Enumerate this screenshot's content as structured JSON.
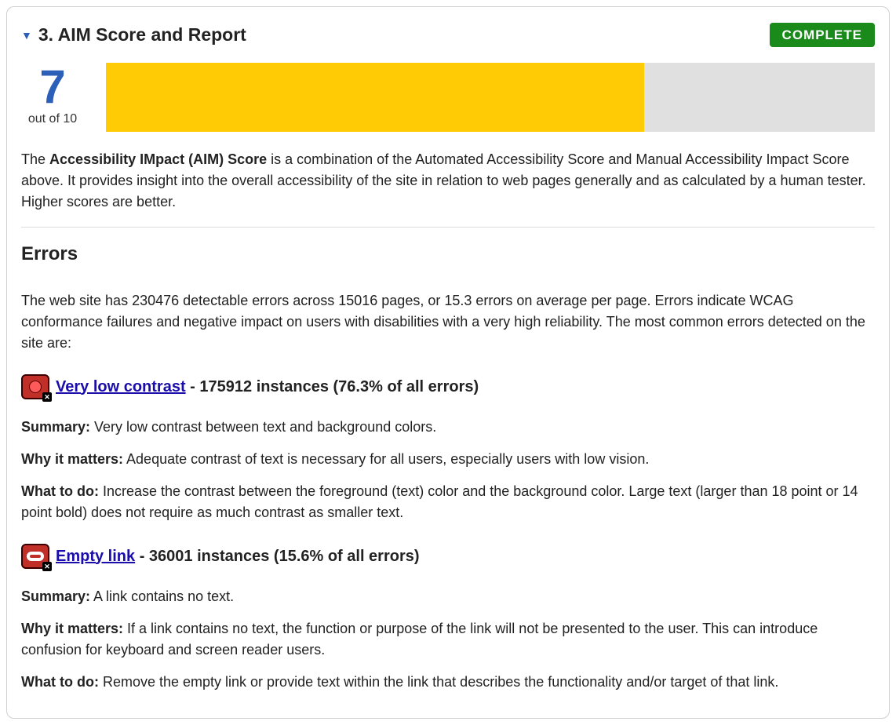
{
  "section": {
    "title": "3. AIM Score and Report",
    "badge": "COMPLETE",
    "badge_bg": "#1a8a1a",
    "badge_color": "#ffffff"
  },
  "score": {
    "value": "7",
    "max_label": "out of 10",
    "fill_percent": 70,
    "fill_color": "#ffcb05",
    "bg_color": "#e0e0e0",
    "value_color": "#2c5fb8"
  },
  "intro": {
    "prefix": "The ",
    "bold": "Accessibility IMpact (AIM) Score",
    "rest": " is a combination of the Automated Accessibility Score and Manual Accessibility Impact Score above. It provides insight into the overall accessibility of the site in relation to web pages generally and as calculated by a human tester. Higher scores are better."
  },
  "errors": {
    "heading": "Errors",
    "intro": "The web site has 230476 detectable errors across 15016 pages, or 15.3 errors on average per page. Errors indicate WCAG conformance failures and negative impact on users with disabilities with a very high reliability. The most common errors detected on the site are:",
    "items": [
      {
        "link": "Very low contrast",
        "suffix": " - 175912 instances (76.3% of all errors)",
        "summary_label": "Summary:",
        "summary": " Very low contrast between text and background colors.",
        "why_label": "Why it matters:",
        "why": " Adequate contrast of text is necessary for all users, especially users with low vision.",
        "todo_label": "What to do:",
        "todo": " Increase the contrast between the foreground (text) color and the background color. Large text (larger than 18 point or 14 point bold) does not require as much contrast as smaller text."
      },
      {
        "link": "Empty link",
        "suffix": " - 36001 instances (15.6% of all errors)",
        "summary_label": "Summary:",
        "summary": " A link contains no text.",
        "why_label": "Why it matters:",
        "why": " If a link contains no text, the function or purpose of the link will not be presented to the user. This can introduce confusion for keyboard and screen reader users.",
        "todo_label": "What to do:",
        "todo": " Remove the empty link or provide text within the link that describes the functionality and/or target of that link."
      }
    ]
  }
}
